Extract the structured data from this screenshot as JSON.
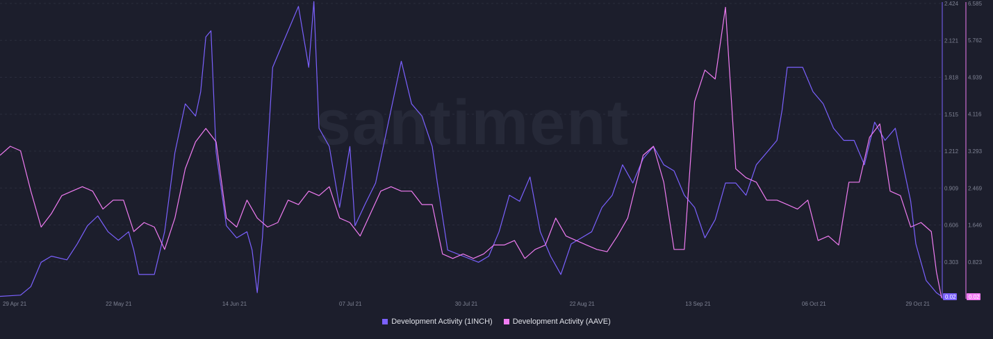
{
  "watermark": "santiment",
  "colors": {
    "background": "#1c1e2c",
    "series_1inch": "#7b61ff",
    "series_aave": "#f07cf2",
    "grid": "#2a2d3d",
    "tick_text": "#7f8394"
  },
  "legend": {
    "items": [
      {
        "label": "Development Activity (1INCH)",
        "color": "#7b61ff"
      },
      {
        "label": "Development Activity (AAVE)",
        "color": "#f07cf2"
      }
    ]
  },
  "chart_data": {
    "type": "line",
    "title": "",
    "xlabel": "",
    "x_tick_labels": [
      "29 Apr 21",
      "22 May 21",
      "14 Jun 21",
      "07 Jul 21",
      "30 Jul 21",
      "22 Aug 21",
      "13 Sep 21",
      "06 Oct 21",
      "29 Oct 21"
    ],
    "x_range": [
      "2021-04-29",
      "2021-10-29"
    ],
    "y_axes": [
      {
        "series": "Development Activity (1INCH)",
        "range": [
          0,
          2.424
        ],
        "tick_labels": [
          "0.303",
          "0.606",
          "0.909",
          "1.212",
          "1.515",
          "1.818",
          "2.121",
          "2.424"
        ],
        "last_value_label": "0.02"
      },
      {
        "series": "Development Activity (AAVE)",
        "range": [
          0,
          6.585
        ],
        "tick_labels": [
          "0.823",
          "1.646",
          "2.469",
          "3.293",
          "4.116",
          "4.939",
          "5.762",
          "6.585"
        ],
        "last_value_label": "0.02"
      }
    ],
    "grid": true,
    "legend_position": "bottom",
    "series": [
      {
        "name": "Development Activity (1INCH)",
        "axis": 0,
        "points": [
          [
            "2021-04-29",
            0.02
          ],
          [
            "2021-05-03",
            0.03
          ],
          [
            "2021-05-05",
            0.1
          ],
          [
            "2021-05-07",
            0.3
          ],
          [
            "2021-05-09",
            0.35
          ],
          [
            "2021-05-12",
            0.32
          ],
          [
            "2021-05-14",
            0.45
          ],
          [
            "2021-05-16",
            0.6
          ],
          [
            "2021-05-18",
            0.68
          ],
          [
            "2021-05-20",
            0.55
          ],
          [
            "2021-05-22",
            0.48
          ],
          [
            "2021-05-24",
            0.55
          ],
          [
            "2021-05-25",
            0.4
          ],
          [
            "2021-05-26",
            0.2
          ],
          [
            "2021-05-29",
            0.2
          ],
          [
            "2021-05-31",
            0.55
          ],
          [
            "2021-06-02",
            1.2
          ],
          [
            "2021-06-04",
            1.6
          ],
          [
            "2021-06-06",
            1.5
          ],
          [
            "2021-06-07",
            1.7
          ],
          [
            "2021-06-08",
            2.15
          ],
          [
            "2021-06-09",
            2.2
          ],
          [
            "2021-06-10",
            1.2
          ],
          [
            "2021-06-12",
            0.6
          ],
          [
            "2021-06-14",
            0.5
          ],
          [
            "2021-06-16",
            0.55
          ],
          [
            "2021-06-17",
            0.4
          ],
          [
            "2021-06-18",
            0.05
          ],
          [
            "2021-06-19",
            0.5
          ],
          [
            "2021-06-21",
            1.9
          ],
          [
            "2021-06-23",
            2.1
          ],
          [
            "2021-06-26",
            2.4
          ],
          [
            "2021-06-28",
            1.9
          ],
          [
            "2021-06-29",
            2.44
          ],
          [
            "2021-06-30",
            1.4
          ],
          [
            "2021-07-02",
            1.25
          ],
          [
            "2021-07-04",
            0.75
          ],
          [
            "2021-07-06",
            1.25
          ],
          [
            "2021-07-07",
            0.6
          ],
          [
            "2021-07-09",
            0.78
          ],
          [
            "2021-07-11",
            0.95
          ],
          [
            "2021-07-13",
            1.35
          ],
          [
            "2021-07-15",
            1.75
          ],
          [
            "2021-07-16",
            1.95
          ],
          [
            "2021-07-18",
            1.6
          ],
          [
            "2021-07-20",
            1.5
          ],
          [
            "2021-07-22",
            1.25
          ],
          [
            "2021-07-23",
            0.95
          ],
          [
            "2021-07-25",
            0.4
          ],
          [
            "2021-07-28",
            0.35
          ],
          [
            "2021-07-31",
            0.3
          ],
          [
            "2021-08-02",
            0.35
          ],
          [
            "2021-08-04",
            0.55
          ],
          [
            "2021-08-06",
            0.85
          ],
          [
            "2021-08-08",
            0.8
          ],
          [
            "2021-08-10",
            1.0
          ],
          [
            "2021-08-12",
            0.55
          ],
          [
            "2021-08-14",
            0.35
          ],
          [
            "2021-08-16",
            0.2
          ],
          [
            "2021-08-18",
            0.45
          ],
          [
            "2021-08-20",
            0.5
          ],
          [
            "2021-08-22",
            0.55
          ],
          [
            "2021-08-24",
            0.75
          ],
          [
            "2021-08-26",
            0.85
          ],
          [
            "2021-08-28",
            1.1
          ],
          [
            "2021-08-30",
            0.95
          ],
          [
            "2021-09-01",
            1.15
          ],
          [
            "2021-09-03",
            1.25
          ],
          [
            "2021-09-05",
            1.1
          ],
          [
            "2021-09-07",
            1.05
          ],
          [
            "2021-09-09",
            0.85
          ],
          [
            "2021-09-11",
            0.75
          ],
          [
            "2021-09-13",
            0.5
          ],
          [
            "2021-09-15",
            0.65
          ],
          [
            "2021-09-17",
            0.95
          ],
          [
            "2021-09-19",
            0.95
          ],
          [
            "2021-09-21",
            0.85
          ],
          [
            "2021-09-23",
            1.1
          ],
          [
            "2021-09-25",
            1.2
          ],
          [
            "2021-09-27",
            1.3
          ],
          [
            "2021-09-28",
            1.55
          ],
          [
            "2021-09-29",
            1.9
          ],
          [
            "2021-09-30",
            1.9
          ],
          [
            "2021-10-02",
            1.9
          ],
          [
            "2021-10-04",
            1.7
          ],
          [
            "2021-10-06",
            1.6
          ],
          [
            "2021-10-08",
            1.4
          ],
          [
            "2021-10-10",
            1.3
          ],
          [
            "2021-10-12",
            1.3
          ],
          [
            "2021-10-14",
            1.1
          ],
          [
            "2021-10-16",
            1.45
          ],
          [
            "2021-10-18",
            1.3
          ],
          [
            "2021-10-20",
            1.4
          ],
          [
            "2021-10-21",
            1.2
          ],
          [
            "2021-10-22",
            1.0
          ],
          [
            "2021-10-23",
            0.8
          ],
          [
            "2021-10-24",
            0.45
          ],
          [
            "2021-10-25",
            0.3
          ],
          [
            "2021-10-26",
            0.15
          ],
          [
            "2021-10-27",
            0.1
          ],
          [
            "2021-10-28",
            0.05
          ],
          [
            "2021-10-29",
            0.02
          ]
        ]
      },
      {
        "name": "Development Activity (AAVE)",
        "axis": 1,
        "points": [
          [
            "2021-04-29",
            3.2
          ],
          [
            "2021-05-01",
            3.4
          ],
          [
            "2021-05-03",
            3.3
          ],
          [
            "2021-05-05",
            2.4
          ],
          [
            "2021-05-07",
            1.6
          ],
          [
            "2021-05-09",
            1.9
          ],
          [
            "2021-05-11",
            2.3
          ],
          [
            "2021-05-13",
            2.4
          ],
          [
            "2021-05-15",
            2.5
          ],
          [
            "2021-05-17",
            2.4
          ],
          [
            "2021-05-19",
            2.0
          ],
          [
            "2021-05-21",
            2.2
          ],
          [
            "2021-05-23",
            2.2
          ],
          [
            "2021-05-25",
            1.5
          ],
          [
            "2021-05-27",
            1.7
          ],
          [
            "2021-05-29",
            1.6
          ],
          [
            "2021-05-31",
            1.1
          ],
          [
            "2021-06-02",
            1.8
          ],
          [
            "2021-06-04",
            2.9
          ],
          [
            "2021-06-06",
            3.5
          ],
          [
            "2021-06-08",
            3.8
          ],
          [
            "2021-06-10",
            3.5
          ],
          [
            "2021-06-12",
            1.8
          ],
          [
            "2021-06-14",
            1.6
          ],
          [
            "2021-06-16",
            2.2
          ],
          [
            "2021-06-18",
            1.8
          ],
          [
            "2021-06-20",
            1.6
          ],
          [
            "2021-06-22",
            1.7
          ],
          [
            "2021-06-24",
            2.2
          ],
          [
            "2021-06-26",
            2.1
          ],
          [
            "2021-06-28",
            2.4
          ],
          [
            "2021-06-30",
            2.3
          ],
          [
            "2021-07-02",
            2.5
          ],
          [
            "2021-07-04",
            1.8
          ],
          [
            "2021-07-06",
            1.7
          ],
          [
            "2021-07-08",
            1.4
          ],
          [
            "2021-07-10",
            1.9
          ],
          [
            "2021-07-12",
            2.4
          ],
          [
            "2021-07-14",
            2.5
          ],
          [
            "2021-07-16",
            2.4
          ],
          [
            "2021-07-18",
            2.4
          ],
          [
            "2021-07-20",
            2.1
          ],
          [
            "2021-07-22",
            2.1
          ],
          [
            "2021-07-24",
            1.0
          ],
          [
            "2021-07-26",
            0.9
          ],
          [
            "2021-07-28",
            1.0
          ],
          [
            "2021-07-30",
            0.9
          ],
          [
            "2021-08-01",
            1.0
          ],
          [
            "2021-08-03",
            1.2
          ],
          [
            "2021-08-05",
            1.2
          ],
          [
            "2021-08-07",
            1.3
          ],
          [
            "2021-08-09",
            0.9
          ],
          [
            "2021-08-11",
            1.1
          ],
          [
            "2021-08-13",
            1.2
          ],
          [
            "2021-08-15",
            1.8
          ],
          [
            "2021-08-17",
            1.4
          ],
          [
            "2021-08-19",
            1.3
          ],
          [
            "2021-08-21",
            1.2
          ],
          [
            "2021-08-23",
            1.1
          ],
          [
            "2021-08-25",
            1.05
          ],
          [
            "2021-08-27",
            1.4
          ],
          [
            "2021-08-29",
            1.8
          ],
          [
            "2021-09-01",
            3.2
          ],
          [
            "2021-09-03",
            3.4
          ],
          [
            "2021-09-05",
            2.6
          ],
          [
            "2021-09-07",
            1.1
          ],
          [
            "2021-09-09",
            1.1
          ],
          [
            "2021-09-11",
            4.4
          ],
          [
            "2021-09-13",
            5.1
          ],
          [
            "2021-09-15",
            4.9
          ],
          [
            "2021-09-17",
            6.5
          ],
          [
            "2021-09-19",
            2.9
          ],
          [
            "2021-09-21",
            2.7
          ],
          [
            "2021-09-23",
            2.6
          ],
          [
            "2021-09-25",
            2.2
          ],
          [
            "2021-09-27",
            2.2
          ],
          [
            "2021-09-29",
            2.1
          ],
          [
            "2021-10-01",
            2.0
          ],
          [
            "2021-10-03",
            2.2
          ],
          [
            "2021-10-05",
            1.3
          ],
          [
            "2021-10-07",
            1.4
          ],
          [
            "2021-10-09",
            1.2
          ],
          [
            "2021-10-11",
            2.6
          ],
          [
            "2021-10-13",
            2.6
          ],
          [
            "2021-10-15",
            3.6
          ],
          [
            "2021-10-17",
            3.9
          ],
          [
            "2021-10-19",
            2.4
          ],
          [
            "2021-10-21",
            2.3
          ],
          [
            "2021-10-23",
            1.6
          ],
          [
            "2021-10-25",
            1.7
          ],
          [
            "2021-10-27",
            1.5
          ],
          [
            "2021-10-28",
            0.6
          ],
          [
            "2021-10-29",
            0.02
          ]
        ]
      }
    ]
  }
}
